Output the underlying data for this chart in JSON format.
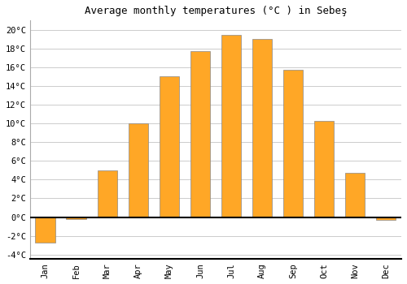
{
  "months": [
    "Jan",
    "Feb",
    "Mar",
    "Apr",
    "May",
    "Jun",
    "Jul",
    "Aug",
    "Sep",
    "Oct",
    "Nov",
    "Dec"
  ],
  "values": [
    -2.7,
    -0.2,
    5.0,
    10.0,
    15.0,
    17.7,
    19.5,
    19.0,
    15.7,
    10.3,
    4.7,
    -0.3
  ],
  "bar_color": "#FFA726",
  "bar_edge_color": "#888888",
  "title": "Average monthly temperatures (°C ) in Sebeş",
  "ylim": [
    -4.5,
    21
  ],
  "yticks": [
    -4,
    -2,
    0,
    2,
    4,
    6,
    8,
    10,
    12,
    14,
    16,
    18,
    20
  ],
  "background_color": "#ffffff",
  "plot_bg_color": "#ffffff",
  "grid_color": "#cccccc",
  "zero_line_color": "#000000",
  "title_fontsize": 9,
  "tick_fontsize": 7.5
}
